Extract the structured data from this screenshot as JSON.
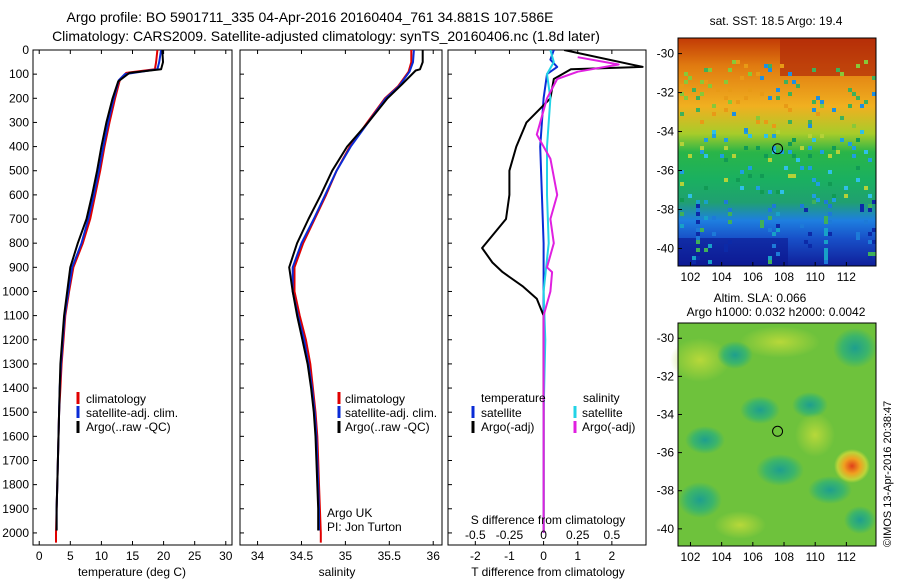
{
  "header": {
    "line1": "Argo profile: BO 5901711_335 04-Apr-2016 20160404_761 34.881S 107.586E",
    "line2": "Climatology: CARS2009. Satellite-adjusted climatology: synTS_20160406.nc (1.8d later)"
  },
  "colors": {
    "climatology": "#e00000",
    "satellite": "#0a2bd6",
    "argo": "#000000",
    "satellite_diff": "#22d3e6",
    "argo_adj_diff": "#e020e0"
  },
  "chart_data": [
    {
      "type": "line",
      "id": "temperature",
      "xlabel": "temperature (deg C)",
      "xlim": [
        -1,
        31
      ],
      "ylim": [
        0,
        2050
      ],
      "y_inverted": true,
      "xticks": [
        0,
        5,
        10,
        15,
        20,
        25,
        30
      ],
      "yticks": [
        0,
        100,
        200,
        300,
        400,
        500,
        600,
        700,
        800,
        900,
        1000,
        1100,
        1200,
        1300,
        1400,
        1500,
        1600,
        1700,
        1800,
        1900,
        2000
      ],
      "legend": [
        "climatology",
        "satellite-adj. clim.",
        "Argo(..raw -QC)"
      ],
      "series": [
        {
          "name": "climatology",
          "color": "#e00000",
          "points": [
            [
              19.0,
              0
            ],
            [
              18.8,
              50
            ],
            [
              18.6,
              80
            ],
            [
              14,
              95
            ],
            [
              13.0,
              120
            ],
            [
              12.2,
              200
            ],
            [
              11.3,
              300
            ],
            [
              10.5,
              400
            ],
            [
              9.8,
              500
            ],
            [
              9.0,
              600
            ],
            [
              8.2,
              700
            ],
            [
              7.0,
              800
            ],
            [
              5.5,
              900
            ],
            [
              4.8,
              1000
            ],
            [
              4.2,
              1100
            ],
            [
              3.9,
              1200
            ],
            [
              3.6,
              1300
            ],
            [
              3.4,
              1400
            ],
            [
              3.2,
              1500
            ],
            [
              3.1,
              1600
            ],
            [
              3.0,
              1700
            ],
            [
              2.9,
              1800
            ],
            [
              2.8,
              1900
            ],
            [
              2.7,
              2000
            ],
            [
              2.7,
              2040
            ]
          ]
        },
        {
          "name": "satellite-adj. clim.",
          "color": "#0a2bd6",
          "points": [
            [
              19.6,
              0
            ],
            [
              19.3,
              50
            ],
            [
              19.0,
              80
            ],
            [
              13.8,
              100
            ],
            [
              12.8,
              125
            ],
            [
              12.0,
              200
            ],
            [
              11.1,
              300
            ],
            [
              10.3,
              400
            ],
            [
              9.6,
              500
            ],
            [
              8.8,
              600
            ],
            [
              7.9,
              700
            ],
            [
              6.8,
              800
            ],
            [
              5.3,
              900
            ],
            [
              4.7,
              1000
            ],
            [
              4.1,
              1100
            ],
            [
              3.8,
              1200
            ],
            [
              3.5,
              1300
            ],
            [
              3.3,
              1400
            ],
            [
              3.2,
              1500
            ],
            [
              3.1,
              1600
            ],
            [
              3.0,
              1700
            ],
            [
              2.9,
              1800
            ],
            [
              2.8,
              1900
            ],
            [
              2.8,
              1990
            ]
          ]
        },
        {
          "name": "Argo(..raw -QC)",
          "color": "#000000",
          "points": [
            [
              19.8,
              0
            ],
            [
              19.9,
              50
            ],
            [
              19.6,
              80
            ],
            [
              14.5,
              95
            ],
            [
              12.7,
              130
            ],
            [
              11.8,
              200
            ],
            [
              10.8,
              300
            ],
            [
              10.0,
              400
            ],
            [
              9.3,
              500
            ],
            [
              8.5,
              600
            ],
            [
              7.6,
              700
            ],
            [
              6.2,
              800
            ],
            [
              5.0,
              900
            ],
            [
              4.5,
              1000
            ],
            [
              4.0,
              1100
            ],
            [
              3.7,
              1200
            ],
            [
              3.4,
              1300
            ],
            [
              3.3,
              1400
            ],
            [
              3.2,
              1500
            ],
            [
              3.1,
              1600
            ],
            [
              3.0,
              1700
            ],
            [
              2.9,
              1800
            ],
            [
              2.8,
              1900
            ],
            [
              2.8,
              1990
            ]
          ]
        }
      ]
    },
    {
      "type": "line",
      "id": "salinity",
      "xlabel": "salinity",
      "xlim": [
        33.8,
        36.1
      ],
      "ylim": [
        0,
        2050
      ],
      "y_inverted": true,
      "xticks": [
        34,
        34.5,
        35,
        35.5,
        36
      ],
      "xtick_labels": [
        "34",
        "34.5",
        "35",
        "35.5",
        "36"
      ],
      "legend": [
        "climatology",
        "satellite-adj. clim.",
        "Argo(..raw -QC)"
      ],
      "annotations": [
        "Argo UK",
        "PI: Jon Turton"
      ],
      "series": [
        {
          "name": "climatology",
          "color": "#e00000",
          "points": [
            [
              35.75,
              0
            ],
            [
              35.75,
              50
            ],
            [
              35.72,
              90
            ],
            [
              35.6,
              150
            ],
            [
              35.45,
              200
            ],
            [
              35.25,
              300
            ],
            [
              35.05,
              400
            ],
            [
              34.9,
              500
            ],
            [
              34.78,
              600
            ],
            [
              34.65,
              700
            ],
            [
              34.52,
              800
            ],
            [
              34.42,
              900
            ],
            [
              34.42,
              1000
            ],
            [
              34.48,
              1100
            ],
            [
              34.55,
              1200
            ],
            [
              34.6,
              1300
            ],
            [
              34.63,
              1400
            ],
            [
              34.66,
              1500
            ],
            [
              34.68,
              1600
            ],
            [
              34.69,
              1700
            ],
            [
              34.7,
              1800
            ],
            [
              34.71,
              1900
            ],
            [
              34.72,
              2000
            ],
            [
              34.72,
              2040
            ]
          ]
        },
        {
          "name": "satellite-adj. clim.",
          "color": "#0a2bd6",
          "points": [
            [
              35.78,
              0
            ],
            [
              35.77,
              50
            ],
            [
              35.73,
              90
            ],
            [
              35.61,
              150
            ],
            [
              35.46,
              200
            ],
            [
              35.26,
              300
            ],
            [
              35.06,
              400
            ],
            [
              34.9,
              500
            ],
            [
              34.77,
              600
            ],
            [
              34.64,
              700
            ],
            [
              34.5,
              800
            ],
            [
              34.4,
              900
            ],
            [
              34.4,
              1000
            ],
            [
              34.46,
              1100
            ],
            [
              34.53,
              1200
            ],
            [
              34.58,
              1300
            ],
            [
              34.62,
              1400
            ],
            [
              34.65,
              1500
            ],
            [
              34.67,
              1600
            ],
            [
              34.68,
              1700
            ],
            [
              34.69,
              1800
            ],
            [
              34.7,
              1900
            ],
            [
              34.7,
              1990
            ]
          ]
        },
        {
          "name": "Argo(..raw -QC)",
          "color": "#000000",
          "points": [
            [
              35.88,
              0
            ],
            [
              35.88,
              50
            ],
            [
              35.85,
              80
            ],
            [
              35.8,
              85
            ],
            [
              35.65,
              140
            ],
            [
              35.48,
              200
            ],
            [
              35.26,
              300
            ],
            [
              35.02,
              400
            ],
            [
              34.85,
              500
            ],
            [
              34.72,
              600
            ],
            [
              34.58,
              700
            ],
            [
              34.45,
              800
            ],
            [
              34.36,
              900
            ],
            [
              34.4,
              1000
            ],
            [
              34.45,
              1100
            ],
            [
              34.51,
              1200
            ],
            [
              34.57,
              1300
            ],
            [
              34.61,
              1400
            ],
            [
              34.64,
              1500
            ],
            [
              34.66,
              1600
            ],
            [
              34.67,
              1700
            ],
            [
              34.68,
              1800
            ],
            [
              34.69,
              1900
            ],
            [
              34.69,
              1990
            ]
          ]
        }
      ]
    },
    {
      "type": "line",
      "id": "differences",
      "xlabel": "T difference from climatology",
      "top_label": "S difference from climatology",
      "xlim": [
        -2.8,
        3
      ],
      "ylim": [
        0,
        2050
      ],
      "y_inverted": true,
      "xticks": [
        -2,
        -1,
        0,
        1,
        2
      ],
      "top_ticks": [
        -0.5,
        -0.25,
        0,
        0.25,
        0.5
      ],
      "top_tick_labels": [
        "-0.5",
        "-0.25",
        "0",
        "0.25",
        "0.5"
      ],
      "legend_temperature": {
        "title": "temperature",
        "items": [
          "satellite",
          "Argo(-adj)"
        ]
      },
      "legend_salinity": {
        "title": "salinity",
        "items": [
          "satellite",
          "Argo(-adj)"
        ]
      },
      "series": [
        {
          "name": "temperature satellite",
          "color": "#0a2bd6",
          "points": [
            [
              0.3,
              0
            ],
            [
              0.2,
              40
            ],
            [
              0.4,
              70
            ],
            [
              0.1,
              100
            ],
            [
              0.0,
              200
            ],
            [
              -0.1,
              400
            ],
            [
              -0.05,
              600
            ],
            [
              0.0,
              800
            ],
            [
              0.0,
              1000
            ],
            [
              0.0,
              1500
            ],
            [
              0.0,
              2000
            ]
          ]
        },
        {
          "name": "temperature Argo(-adj)",
          "color": "#000000",
          "points": [
            [
              0.6,
              0
            ],
            [
              2.9,
              70
            ],
            [
              0.8,
              80
            ],
            [
              0.3,
              120
            ],
            [
              0.2,
              200
            ],
            [
              -0.5,
              300
            ],
            [
              -0.8,
              400
            ],
            [
              -1.0,
              500
            ],
            [
              -1.0,
              600
            ],
            [
              -1.1,
              700
            ],
            [
              -1.8,
              820
            ],
            [
              -1.5,
              880
            ],
            [
              -1.2,
              920
            ],
            [
              -0.6,
              980
            ],
            [
              -0.2,
              1030
            ],
            [
              0.0,
              1100
            ],
            [
              0.0,
              1200
            ],
            [
              0.0,
              1500
            ],
            [
              0.0,
              2000
            ]
          ]
        },
        {
          "name": "salinity satellite",
          "color": "#22d3e6",
          "points": [
            [
              0.2,
              0
            ],
            [
              0.3,
              50
            ],
            [
              0.1,
              100
            ],
            [
              0.2,
              200
            ],
            [
              0.1,
              400
            ],
            [
              0.1,
              600
            ],
            [
              0.15,
              800
            ],
            [
              0.0,
              1000
            ],
            [
              0.05,
              1200
            ],
            [
              0.0,
              1500
            ],
            [
              0.0,
              2000
            ]
          ]
        },
        {
          "name": "salinity Argo(-adj)",
          "color": "#e020e0",
          "points": [
            [
              1.0,
              30
            ],
            [
              2.2,
              60
            ],
            [
              1.0,
              90
            ],
            [
              0.4,
              120
            ],
            [
              0.1,
              200
            ],
            [
              -0.2,
              350
            ],
            [
              0.2,
              450
            ],
            [
              0.4,
              600
            ],
            [
              0.2,
              700
            ],
            [
              0.3,
              800
            ],
            [
              0.1,
              900
            ],
            [
              0.25,
              920
            ],
            [
              0.2,
              1000
            ],
            [
              0.0,
              1100
            ],
            [
              0.0,
              1200
            ],
            [
              0.0,
              1500
            ],
            [
              0.0,
              2000
            ]
          ]
        }
      ]
    },
    {
      "type": "heatmap",
      "id": "sst_map",
      "title": "sat. SST: 18.5  Argo: 19.4",
      "xlim": [
        101.2,
        113.9
      ],
      "ylim": [
        -40.9,
        -29.2
      ],
      "xticks": [
        102,
        104,
        106,
        108,
        110,
        112
      ],
      "yticks": [
        -30,
        -32,
        -34,
        -36,
        -38,
        -40
      ],
      "marker": {
        "lon": 107.586,
        "lat": -34.881
      }
    },
    {
      "type": "heatmap",
      "id": "sla_map",
      "title_line1": "Altim. SLA: 0.066",
      "title_line2": "Argo h1000: 0.032 h2000: 0.0042",
      "xlim": [
        101.2,
        113.9
      ],
      "ylim": [
        -40.9,
        -29.2
      ],
      "xticks": [
        102,
        104,
        106,
        108,
        110,
        112
      ],
      "yticks": [
        -30,
        -32,
        -34,
        -36,
        -38,
        -40
      ],
      "marker": {
        "lon": 107.586,
        "lat": -34.881
      }
    }
  ],
  "credit": "©IMOS 13-Apr-2016 20:38:47"
}
